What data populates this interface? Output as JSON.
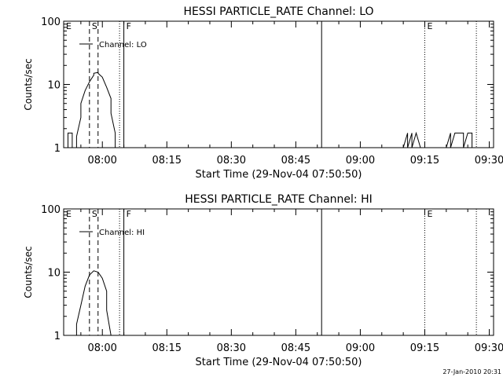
{
  "footer": {
    "timestamp": "27-Jan-2010 20:31"
  },
  "colors": {
    "background": "#ffffff",
    "foreground": "#000000"
  },
  "chart_data": [
    {
      "type": "line",
      "title": "HESSI PARTICLE_RATE Channel: LO",
      "xlabel": "Start Time (29-Nov-04 07:50:50)",
      "ylabel": "Counts/sec",
      "y_scale": "log",
      "ylim": [
        1,
        100
      ],
      "xlim": [
        "07:51",
        "09:31"
      ],
      "x_ticks": [
        "08:00",
        "08:15",
        "08:30",
        "08:45",
        "09:00",
        "09:15",
        "09:30"
      ],
      "y_ticks": [
        "1",
        "10",
        "100"
      ],
      "legend": {
        "label": "Channel: LO",
        "placement": "top-left"
      },
      "grid": false,
      "markers": [
        {
          "label": "E",
          "time": "07:51",
          "style": "none"
        },
        {
          "label": "S",
          "time": "07:57",
          "style": "dashed"
        },
        {
          "label": "",
          "time": "07:59",
          "style": "dashed"
        },
        {
          "label": "",
          "time": "08:04",
          "style": "dotted"
        },
        {
          "label": "F",
          "time": "08:05",
          "style": "solid"
        },
        {
          "label": "",
          "time": "08:51",
          "style": "solid"
        },
        {
          "label": "E",
          "time": "09:15",
          "style": "dotted"
        },
        {
          "label": "",
          "time": "09:27",
          "style": "dotted"
        }
      ],
      "series": [
        {
          "points": [
            [
              "07:51",
              1.7
            ],
            [
              "07:51",
              1
            ],
            [
              "07:52",
              1
            ],
            [
              "07:52",
              1.7
            ],
            [
              "07:53",
              1.7
            ],
            [
              "07:53",
              1
            ],
            [
              "07:54",
              1
            ],
            [
              "07:54",
              1.5
            ],
            [
              "07:55",
              3
            ],
            [
              "07:55",
              5
            ],
            [
              "07:56",
              8
            ],
            [
              "07:57",
              11
            ],
            [
              "07:58",
              14
            ],
            [
              "07:58",
              15
            ],
            [
              "07:59",
              15.5
            ],
            [
              "07:59",
              15
            ],
            [
              "08:00",
              13
            ],
            [
              "08:01",
              9
            ],
            [
              "08:02",
              6
            ],
            [
              "08:02",
              3.5
            ],
            [
              "08:03",
              1.7
            ],
            [
              "08:03",
              1
            ],
            [
              "09:10",
              1
            ],
            [
              "09:11",
              1.7
            ],
            [
              "09:11",
              1
            ],
            [
              "09:12",
              1.7
            ],
            [
              "09:12",
              1
            ],
            [
              "09:13",
              1.7
            ],
            [
              "09:14",
              1
            ],
            [
              "09:20",
              1
            ],
            [
              "09:21",
              1.7
            ],
            [
              "09:21",
              1
            ],
            [
              "09:22",
              1.7
            ],
            [
              "09:24",
              1.7
            ],
            [
              "09:24",
              1
            ],
            [
              "09:25",
              1.7
            ],
            [
              "09:26",
              1.7
            ],
            [
              "09:26",
              1
            ]
          ]
        }
      ]
    },
    {
      "type": "line",
      "title": "HESSI PARTICLE_RATE Channel: HI",
      "xlabel": "Start Time (29-Nov-04 07:50:50)",
      "ylabel": "Counts/sec",
      "y_scale": "log",
      "ylim": [
        1,
        100
      ],
      "xlim": [
        "07:51",
        "09:31"
      ],
      "x_ticks": [
        "08:00",
        "08:15",
        "08:30",
        "08:45",
        "09:00",
        "09:15",
        "09:30"
      ],
      "y_ticks": [
        "1",
        "10",
        "100"
      ],
      "legend": {
        "label": "Channel: HI",
        "placement": "top-left"
      },
      "grid": false,
      "markers": [
        {
          "label": "E",
          "time": "07:51",
          "style": "none"
        },
        {
          "label": "S",
          "time": "07:57",
          "style": "dashed"
        },
        {
          "label": "",
          "time": "07:59",
          "style": "dashed"
        },
        {
          "label": "",
          "time": "08:04",
          "style": "dotted"
        },
        {
          "label": "F",
          "time": "08:05",
          "style": "solid"
        },
        {
          "label": "",
          "time": "08:51",
          "style": "solid"
        },
        {
          "label": "E",
          "time": "09:15",
          "style": "dotted"
        },
        {
          "label": "",
          "time": "09:27",
          "style": "dotted"
        }
      ],
      "series": [
        {
          "points": [
            [
              "07:54",
              1
            ],
            [
              "07:54",
              1.5
            ],
            [
              "07:55",
              3
            ],
            [
              "07:56",
              6
            ],
            [
              "07:57",
              9
            ],
            [
              "07:58",
              10.5
            ],
            [
              "07:59",
              10
            ],
            [
              "08:00",
              8
            ],
            [
              "08:01",
              5
            ],
            [
              "08:01",
              2.5
            ],
            [
              "08:02",
              1
            ]
          ]
        }
      ]
    }
  ]
}
